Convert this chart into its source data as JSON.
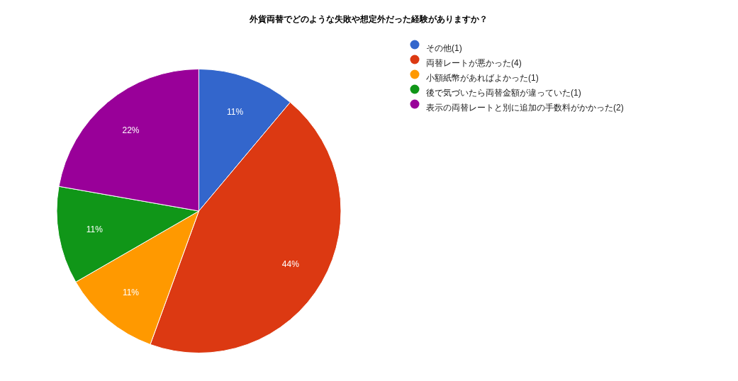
{
  "chart_data": {
    "type": "pie",
    "title": "外貨両替でどのような失敗や想定外だった経験がありますか？",
    "categories": [
      "その他(1)",
      "両替レートが悪かった(4)",
      "小額紙幣があればよかった(1)",
      "後で気づいたら両替金額が違っていた(1)",
      "表示の両替レートと別に追加の手数料がかかった(2)"
    ],
    "values": [
      11,
      44,
      11,
      11,
      22
    ],
    "colors": [
      "#3366cc",
      "#dc3912",
      "#ff9900",
      "#109618",
      "#990099"
    ],
    "value_labels": [
      "11%",
      "44%",
      "11%",
      "11%",
      "22%"
    ],
    "legend": "top right"
  }
}
